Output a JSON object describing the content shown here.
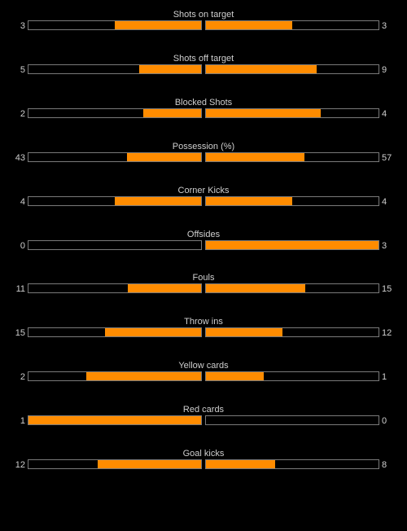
{
  "colors": {
    "background": "#000000",
    "bar_fill": "#ff8c00",
    "bar_border": "#7a7a7a",
    "text": "#cfcfcf"
  },
  "stats": [
    {
      "label": "Shots on target",
      "home": "3",
      "away": "3",
      "home_fill": 0.5,
      "away_fill": 0.5
    },
    {
      "label": "Shots off target",
      "home": "5",
      "away": "9",
      "home_fill": 0.3571,
      "away_fill": 0.6429
    },
    {
      "label": "Blocked Shots",
      "home": "2",
      "away": "4",
      "home_fill": 0.3333,
      "away_fill": 0.6667
    },
    {
      "label": "Possession (%)",
      "home": "43",
      "away": "57",
      "home_fill": 0.43,
      "away_fill": 0.57
    },
    {
      "label": "Corner Kicks",
      "home": "4",
      "away": "4",
      "home_fill": 0.5,
      "away_fill": 0.5
    },
    {
      "label": "Offsides",
      "home": "0",
      "away": "3",
      "home_fill": 0,
      "away_fill": 1
    },
    {
      "label": "Fouls",
      "home": "11",
      "away": "15",
      "home_fill": 0.4231,
      "away_fill": 0.5769
    },
    {
      "label": "Throw ins",
      "home": "15",
      "away": "12",
      "home_fill": 0.5556,
      "away_fill": 0.4444
    },
    {
      "label": "Yellow cards",
      "home": "2",
      "away": "1",
      "home_fill": 0.6667,
      "away_fill": 0.3333
    },
    {
      "label": "Red cards",
      "home": "1",
      "away": "0",
      "home_fill": 1,
      "away_fill": 0
    },
    {
      "label": "Goal kicks",
      "home": "12",
      "away": "8",
      "home_fill": 0.6,
      "away_fill": 0.4
    }
  ]
}
